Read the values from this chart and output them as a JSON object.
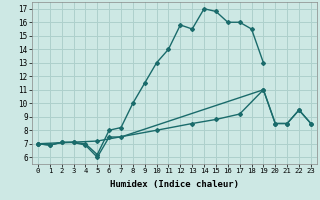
{
  "xlabel": "Humidex (Indice chaleur)",
  "background_color": "#cde8e4",
  "grid_color": "#aed0cc",
  "line_color": "#1a6b6b",
  "xlim": [
    -0.5,
    23.5
  ],
  "ylim": [
    5.5,
    17.5
  ],
  "xticks": [
    0,
    1,
    2,
    3,
    4,
    5,
    6,
    7,
    8,
    9,
    10,
    11,
    12,
    13,
    14,
    15,
    16,
    17,
    18,
    19,
    20,
    21,
    22,
    23
  ],
  "yticks": [
    6,
    7,
    8,
    9,
    10,
    11,
    12,
    13,
    14,
    15,
    16,
    17
  ],
  "lines": [
    {
      "x": [
        0,
        1,
        2,
        3,
        4,
        5,
        6,
        7,
        8,
        9,
        10,
        11,
        12,
        13,
        14,
        15,
        16,
        17,
        18,
        19
      ],
      "y": [
        7,
        6.9,
        7.1,
        7.1,
        7.0,
        6.2,
        8.0,
        8.2,
        10.0,
        11.5,
        13.0,
        14.0,
        15.8,
        15.5,
        17.0,
        16.8,
        16.0,
        16.0,
        15.5,
        13.0
      ]
    },
    {
      "x": [
        0,
        1,
        2,
        3,
        4,
        5,
        6,
        7,
        19,
        20,
        21,
        22,
        23
      ],
      "y": [
        7,
        6.9,
        7.1,
        7.1,
        6.9,
        6.0,
        7.5,
        7.5,
        11.0,
        8.5,
        8.5,
        9.5,
        8.5
      ]
    },
    {
      "x": [
        0,
        5,
        10,
        13,
        15,
        17,
        19,
        20,
        21,
        22,
        23
      ],
      "y": [
        7,
        7.2,
        8.0,
        8.5,
        8.8,
        9.2,
        11.0,
        8.5,
        8.5,
        9.5,
        8.5
      ]
    }
  ]
}
